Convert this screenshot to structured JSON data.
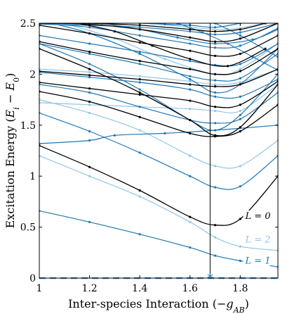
{
  "chart_data": {
    "type": "line",
    "title": "",
    "xlabel": "Inter-species Interaction (−g_AB)",
    "xlabel_parts": [
      "Inter-species Interaction (−",
      "g",
      "AB",
      ")"
    ],
    "ylabel": "Excitation Energy (E_i − E_0)",
    "ylabel_parts": [
      "Excitation Energy (",
      "E",
      "i",
      " − ",
      "E",
      "0",
      ")"
    ],
    "xlim": [
      1.0,
      1.95
    ],
    "ylim": [
      0,
      2.5
    ],
    "xticks": [
      "1",
      "1.2",
      "1.4",
      "1.6",
      "1.8"
    ],
    "yticks": [
      "0",
      "0.5",
      "1",
      "1.5",
      "2",
      "2.5"
    ],
    "grid": false,
    "colors": {
      "L0": "#000000",
      "L1": "#1f77b4",
      "L2": "#8ec6ea"
    },
    "vertical_marker": {
      "x": 1.68,
      "symbol": "*",
      "color": "#1f77b4"
    },
    "ground_state": {
      "y": 0,
      "color": "#4a90d9",
      "style": "dashed"
    },
    "curve_labels": [
      {
        "text": "L = 0",
        "x": 1.82,
        "y": 0.58,
        "color": "#000000"
      },
      {
        "text": "L = 2",
        "x": 1.82,
        "y": 0.35,
        "color": "#8ec6ea"
      },
      {
        "text": "L = 1",
        "x": 1.82,
        "y": 0.14,
        "color": "#1f77b4"
      }
    ],
    "series": [
      {
        "group": "L1",
        "x": [
          1.0,
          1.2,
          1.4,
          1.6,
          1.7,
          1.8,
          1.95
        ],
        "y": [
          0.66,
          0.55,
          0.43,
          0.3,
          0.22,
          0.17,
          0.11
        ]
      },
      {
        "group": "L2",
        "x": [
          1.0,
          1.2,
          1.4,
          1.6,
          1.7,
          1.8,
          1.95
        ],
        "y": [
          1.2,
          1.0,
          0.8,
          0.55,
          0.4,
          0.31,
          0.27
        ]
      },
      {
        "group": "L0",
        "x": [
          1.0,
          1.2,
          1.4,
          1.6,
          1.7,
          1.8,
          1.95
        ],
        "y": [
          1.3,
          1.09,
          0.86,
          0.6,
          0.52,
          0.58,
          1.0
        ]
      },
      {
        "group": "L1",
        "x": [
          1.0,
          1.2,
          1.4,
          1.6,
          1.7,
          1.8,
          1.95
        ],
        "y": [
          1.62,
          1.44,
          1.23,
          1.0,
          0.89,
          0.9,
          1.2
        ]
      },
      {
        "group": "L1",
        "x": [
          1.0,
          1.2,
          1.3,
          1.5,
          1.7,
          1.95
        ],
        "y": [
          1.32,
          1.35,
          1.4,
          1.42,
          1.45,
          1.5
        ]
      },
      {
        "group": "L2",
        "x": [
          1.0,
          1.2,
          1.4,
          1.6,
          1.7,
          1.8,
          1.95
        ],
        "y": [
          1.75,
          1.62,
          1.45,
          1.2,
          1.1,
          1.1,
          1.35
        ]
      },
      {
        "group": "L0",
        "x": [
          1.0,
          1.2,
          1.4,
          1.6,
          1.7,
          1.8,
          1.95
        ],
        "y": [
          1.83,
          1.73,
          1.58,
          1.42,
          1.39,
          1.44,
          1.7
        ]
      },
      {
        "group": "L1",
        "x": [
          1.0,
          1.2,
          1.4,
          1.6,
          1.7,
          1.8,
          1.95
        ],
        "y": [
          1.9,
          1.82,
          1.68,
          1.55,
          1.52,
          1.56,
          1.82
        ]
      },
      {
        "group": "L2",
        "x": [
          1.0,
          1.2,
          1.4,
          1.6,
          1.7,
          1.8,
          1.95
        ],
        "y": [
          1.72,
          1.7,
          1.68,
          1.66,
          1.64,
          1.64,
          1.9
        ]
      },
      {
        "group": "L0",
        "x": [
          1.0,
          1.2,
          1.4,
          1.6,
          1.7,
          1.8,
          1.95
        ],
        "y": [
          1.92,
          1.86,
          1.8,
          1.74,
          1.68,
          1.7,
          1.93
        ]
      },
      {
        "group": "L1",
        "x": [
          1.0,
          1.2,
          1.4,
          1.6,
          1.7,
          1.8,
          1.95
        ],
        "y": [
          2.02,
          1.97,
          1.92,
          1.85,
          1.78,
          1.78,
          1.95
        ]
      },
      {
        "group": "L0",
        "x": [
          1.0,
          1.2,
          1.4,
          1.6,
          1.7,
          1.8,
          1.95
        ],
        "y": [
          2.03,
          1.99,
          1.95,
          1.9,
          1.88,
          1.9,
          2.05
        ]
      },
      {
        "group": "L2",
        "x": [
          1.0,
          1.2,
          1.4,
          1.6,
          1.7,
          1.8,
          1.95
        ],
        "y": [
          2.05,
          2.02,
          1.98,
          1.93,
          1.9,
          1.92,
          2.05
        ]
      },
      {
        "group": "L1",
        "x": [
          1.0,
          1.2,
          1.4,
          1.6,
          1.7,
          1.8,
          1.95
        ],
        "y": [
          2.3,
          2.2,
          2.1,
          1.98,
          1.94,
          1.96,
          2.2
        ]
      },
      {
        "group": "L0",
        "x": [
          1.0,
          1.2,
          1.4,
          1.6,
          1.7,
          1.8,
          1.95
        ],
        "y": [
          2.32,
          2.22,
          2.13,
          2.05,
          2.0,
          2.03,
          2.25
        ]
      },
      {
        "group": "L1",
        "x": [
          1.0,
          1.2,
          1.4,
          1.6,
          1.7,
          1.8,
          1.95
        ],
        "y": [
          2.38,
          2.3,
          2.22,
          2.13,
          2.09,
          2.1,
          2.3
        ]
      },
      {
        "group": "L0",
        "x": [
          1.0,
          1.2,
          1.4,
          1.6,
          1.7,
          1.8,
          1.95
        ],
        "y": [
          2.48,
          2.4,
          2.31,
          2.23,
          2.18,
          2.2,
          2.38
        ]
      },
      {
        "group": "L1",
        "x": [
          1.0,
          1.2,
          1.4,
          1.6,
          1.7,
          1.8,
          1.95
        ],
        "y": [
          2.5,
          2.46,
          2.38,
          2.3,
          2.26,
          2.28,
          2.45
        ]
      },
      {
        "group": "L0",
        "x": [
          1.0,
          1.2,
          1.4,
          1.6,
          1.7,
          1.8,
          1.95
        ],
        "y": [
          2.5,
          2.49,
          2.44,
          2.36,
          2.32,
          2.35,
          2.5
        ]
      },
      {
        "group": "L1",
        "x": [
          1.0,
          1.2,
          1.4,
          1.6,
          1.7,
          1.8,
          1.95
        ],
        "y": [
          2.49,
          2.48,
          2.46,
          2.42,
          2.39,
          2.41,
          2.5
        ]
      },
      {
        "group": "L0",
        "x": [
          1.2,
          1.4,
          1.6,
          1.7,
          1.8,
          1.9
        ],
        "y": [
          2.5,
          2.48,
          2.44,
          2.42,
          2.44,
          2.5
        ]
      },
      {
        "group": "L1",
        "x": [
          1.4,
          1.5,
          1.6,
          1.7,
          1.8
        ],
        "y": [
          2.5,
          2.49,
          2.48,
          2.46,
          2.5
        ]
      },
      {
        "group": "L1",
        "x": [
          1.0,
          1.2,
          1.4,
          1.6,
          1.7,
          1.8,
          1.95
        ],
        "y": [
          2.3,
          2.1,
          1.85,
          1.55,
          1.45,
          1.6,
          2.0
        ]
      },
      {
        "group": "L0",
        "x": [
          1.0,
          1.2,
          1.4,
          1.6,
          1.7,
          1.8,
          1.95
        ],
        "y": [
          2.25,
          2.05,
          1.82,
          1.55,
          1.4,
          1.48,
          1.9
        ]
      },
      {
        "group": "L1",
        "x": [
          1.05,
          1.2,
          1.4,
          1.6,
          1.7,
          1.8,
          1.95
        ],
        "y": [
          2.5,
          2.4,
          2.2,
          1.95,
          1.82,
          1.9,
          2.25
        ]
      },
      {
        "group": "L2",
        "x": [
          1.1,
          1.3,
          1.5,
          1.7,
          1.8,
          1.95
        ],
        "y": [
          2.5,
          2.35,
          2.15,
          2.0,
          2.05,
          2.3
        ]
      },
      {
        "group": "L0",
        "x": [
          1.15,
          1.3,
          1.45,
          1.6,
          1.75,
          1.9
        ],
        "y": [
          2.5,
          2.42,
          2.28,
          2.15,
          2.08,
          2.25
        ]
      },
      {
        "group": "L1",
        "x": [
          1.25,
          1.4,
          1.55,
          1.7,
          1.85,
          1.95
        ],
        "y": [
          2.5,
          2.44,
          2.36,
          2.3,
          2.34,
          2.44
        ]
      },
      {
        "group": "L2",
        "x": [
          1.45,
          1.6,
          1.75,
          1.9
        ],
        "y": [
          2.5,
          2.46,
          2.44,
          2.5
        ]
      },
      {
        "group": "L1",
        "x": [
          1.55,
          1.65,
          1.75,
          1.85,
          1.95
        ],
        "y": [
          2.5,
          2.41,
          2.3,
          2.17,
          2.04
        ]
      },
      {
        "group": "L1",
        "x": [
          1.7,
          1.8,
          1.9,
          1.95
        ],
        "y": [
          2.5,
          2.38,
          2.24,
          2.17
        ]
      }
    ]
  }
}
